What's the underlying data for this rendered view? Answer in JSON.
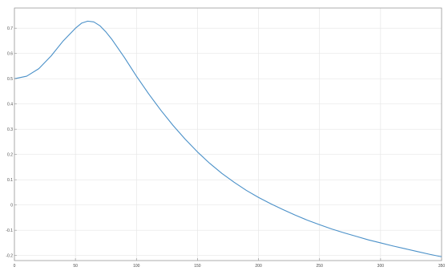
{
  "chart_data": {
    "type": "line",
    "title": "",
    "xlabel": "",
    "ylabel": "",
    "xlim": [
      0,
      350
    ],
    "ylim": [
      -0.22,
      0.78
    ],
    "grid": true,
    "legend": "none",
    "colors": {
      "series": "#4a90c8",
      "grid": "#e6e6e6",
      "axes": "#9a9a9a",
      "background": "#ffffff"
    },
    "xticks": [
      0,
      50,
      100,
      150,
      200,
      250,
      300,
      350
    ],
    "yticks": [
      -0.2,
      -0.1,
      0.0,
      0.1,
      0.2,
      0.3,
      0.4,
      0.5,
      0.6,
      0.7
    ],
    "series": [
      {
        "x": [
          0,
          10,
          20,
          30,
          40,
          50,
          55,
          60,
          65,
          70,
          75,
          80,
          90,
          100,
          110,
          120,
          130,
          140,
          150,
          160,
          170,
          180,
          190,
          200,
          210,
          220,
          230,
          240,
          250,
          260,
          270,
          280,
          290,
          300,
          310,
          320,
          330,
          340,
          350
        ],
        "values": [
          0.5,
          0.51,
          0.54,
          0.59,
          0.65,
          0.7,
          0.72,
          0.728,
          0.725,
          0.71,
          0.685,
          0.655,
          0.585,
          0.51,
          0.44,
          0.375,
          0.315,
          0.26,
          0.21,
          0.165,
          0.125,
          0.09,
          0.058,
          0.03,
          0.005,
          -0.018,
          -0.04,
          -0.06,
          -0.078,
          -0.095,
          -0.11,
          -0.124,
          -0.138,
          -0.15,
          -0.162,
          -0.173,
          -0.184,
          -0.195,
          -0.205
        ]
      }
    ]
  }
}
